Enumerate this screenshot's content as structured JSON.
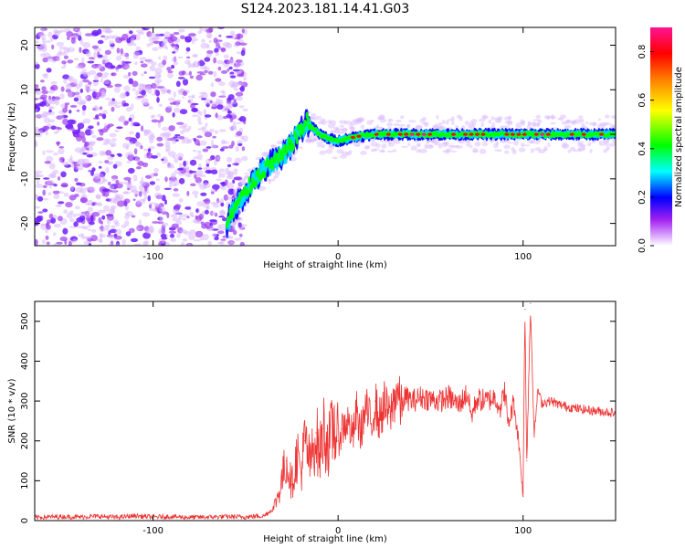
{
  "title": "S124.2023.181.14.41.G03",
  "chart_data": [
    {
      "type": "heatmap",
      "xlabel": "Height of straight line (km)",
      "ylabel": "Frequency (Hz)",
      "xlim": [
        -164,
        150
      ],
      "ylim": [
        -25,
        24
      ],
      "xticks": [
        -100,
        0,
        100
      ],
      "yticks": [
        -20,
        -10,
        0,
        10,
        20
      ],
      "grid": false,
      "colorbar": {
        "label": "Normalized spectral amplitude",
        "range": [
          0,
          0.9
        ],
        "ticks": [
          0.0,
          0.2,
          0.4,
          0.6,
          0.8
        ],
        "colors": [
          "#ffffff",
          "#a020f0",
          "#0000ff",
          "#00ffff",
          "#00ff00",
          "#ffff00",
          "#ff8000",
          "#ff0000",
          "#ff1493"
        ]
      },
      "ridge": {
        "x": [
          -60,
          -55,
          -50,
          -45,
          -40,
          -35,
          -30,
          -25,
          -20,
          -17,
          -15,
          -10,
          -5,
          0,
          5,
          10,
          20,
          40,
          60,
          80,
          100,
          120,
          150
        ],
        "y": [
          -20,
          -16,
          -13,
          -10,
          -8,
          -6,
          -5,
          -2,
          1,
          3,
          2,
          0,
          -1,
          -1.5,
          -1,
          -0.5,
          0,
          0,
          0,
          0,
          0,
          0,
          0
        ]
      },
      "noise_region_x": [
        -164,
        -50
      ]
    },
    {
      "type": "line",
      "xlabel": "Height of straight line (km)",
      "ylabel": "SNR (10 * v/v)",
      "xlim": [
        -164,
        150
      ],
      "ylim": [
        0,
        550
      ],
      "xticks": [
        -100,
        0,
        100
      ],
      "yticks": [
        0,
        100,
        200,
        300,
        400,
        500
      ],
      "grid": false,
      "series": [
        {
          "color": "#ee3333",
          "x": [
            -164,
            -150,
            -140,
            -130,
            -120,
            -110,
            -100,
            -90,
            -80,
            -70,
            -60,
            -50,
            -45,
            -40,
            -35,
            -32,
            -30,
            -28,
            -25,
            -22,
            -20,
            -18,
            -15,
            -12,
            -10,
            -8,
            -5,
            -2,
            0,
            2,
            5,
            8,
            10,
            12,
            15,
            18,
            20,
            22,
            25,
            28,
            30,
            32,
            34,
            36,
            40,
            45,
            50,
            55,
            60,
            65,
            70,
            72,
            75,
            80,
            85,
            88,
            90,
            92,
            95,
            98,
            100,
            101,
            102,
            104,
            106,
            108,
            110,
            115,
            120,
            130,
            140,
            150
          ],
          "y": [
            8,
            10,
            9,
            11,
            8,
            12,
            9,
            10,
            8,
            9,
            10,
            9,
            11,
            12,
            30,
            70,
            110,
            150,
            90,
            170,
            120,
            200,
            140,
            220,
            160,
            230,
            190,
            240,
            200,
            230,
            250,
            210,
            270,
            220,
            280,
            240,
            300,
            250,
            290,
            260,
            300,
            330,
            280,
            310,
            300,
            310,
            305,
            300,
            310,
            290,
            320,
            260,
            305,
            300,
            310,
            280,
            330,
            240,
            300,
            180,
            60,
            530,
            150,
            545,
            210,
            330,
            295,
            300,
            290,
            280,
            275,
            270
          ]
        }
      ]
    }
  ]
}
